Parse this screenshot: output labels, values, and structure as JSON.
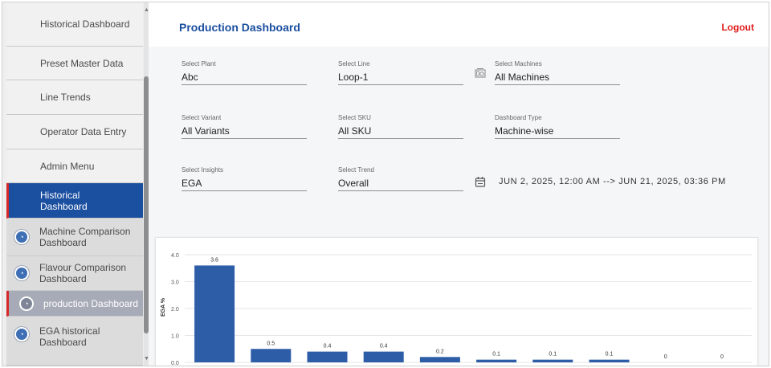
{
  "sidebar": {
    "items": [
      {
        "label": "Historical Dashboard"
      },
      {
        "label": "Preset Master Data"
      },
      {
        "label": "Line Trends"
      },
      {
        "label": "Operator Data Entry"
      },
      {
        "label": "Admin Menu"
      },
      {
        "label": "Historical Dashboard"
      },
      {
        "label": "Machine Comparison Dashboard"
      },
      {
        "label": "Flavour Comparison Dashboard"
      },
      {
        "label": "production Dashboard"
      },
      {
        "label": "EGA historical Dashboard"
      }
    ]
  },
  "header": {
    "title": "Production Dashboard",
    "logout": "Logout"
  },
  "filters": {
    "plant": {
      "label": "Select Plant",
      "value": "Abc"
    },
    "line": {
      "label": "Select Line",
      "value": "Loop-1"
    },
    "machines": {
      "label": "Select Machines",
      "value": "All Machines"
    },
    "variant": {
      "label": "Select Variant",
      "value": "All Variants"
    },
    "sku": {
      "label": "Select SKU",
      "value": "All SKU"
    },
    "dashboard_type": {
      "label": "Dashboard Type",
      "value": "Machine-wise"
    },
    "insights": {
      "label": "Select Insights",
      "value": "EGA"
    },
    "trend": {
      "label": "Select Trend",
      "value": "Overall"
    },
    "date_range": "JUN 2, 2025, 12:00 AM --> JUN 21, 2025, 03:36 PM"
  },
  "icons": {
    "machines": "machine-icon",
    "date": "calendar-icon",
    "nav": "gauge-icon"
  },
  "colors": {
    "accent": "#1b4fa0",
    "logout": "#e01b1b",
    "bar": "#2e5da8"
  },
  "chart_data": {
    "type": "bar",
    "ylabel": "EGA %",
    "values": [
      3.6,
      0.5,
      0.4,
      0.4,
      0.2,
      0.1,
      0.1,
      0.1,
      0,
      0
    ],
    "value_labels": [
      "3.6",
      "0.5",
      "0.4",
      "0.4",
      "0.2",
      "0.1",
      "0.1",
      "0.1",
      "0",
      "0"
    ],
    "yticks": [
      "0.0",
      "1.0",
      "2.0",
      "3.0",
      "4.0"
    ],
    "ylim": [
      0,
      4
    ],
    "grid": true
  }
}
